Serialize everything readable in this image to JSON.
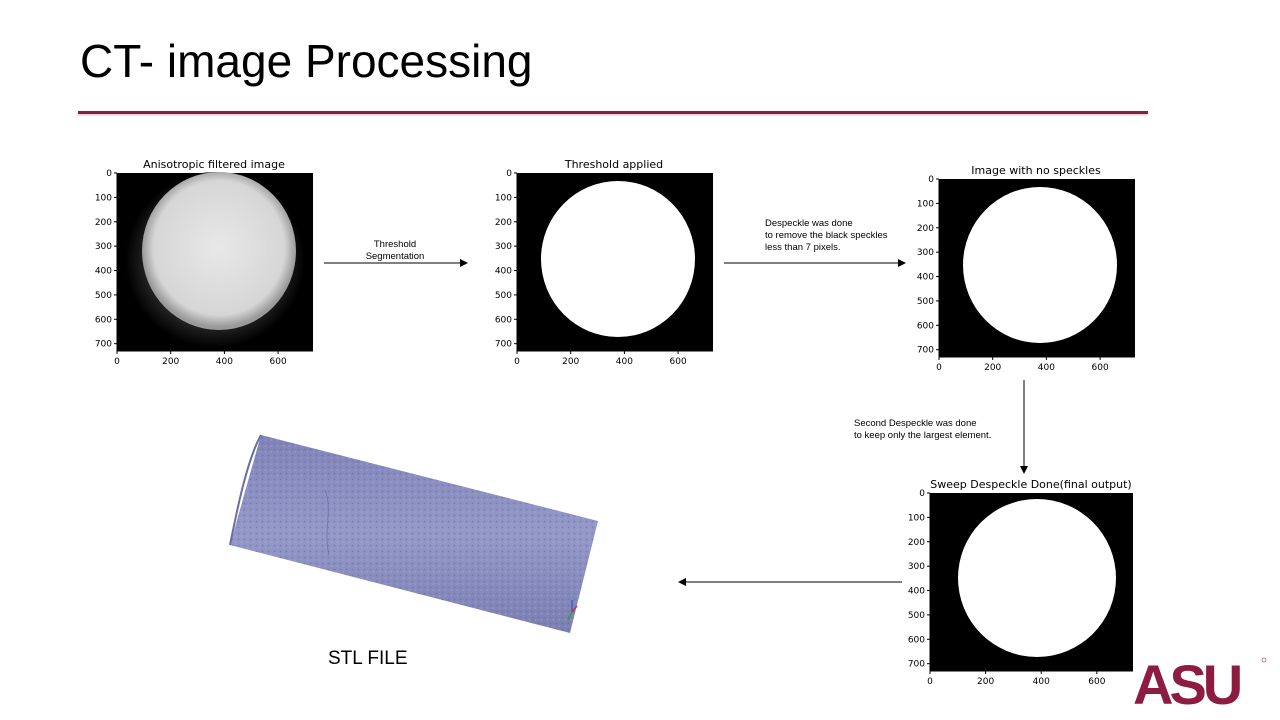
{
  "slide": {
    "title": "CT- image Processing",
    "accent_color": "#8c1d40",
    "logo_text": "ASU",
    "logo_color": "#8c1d40",
    "logo_accent_color": "#ffc627"
  },
  "images": [
    {
      "id": "img1",
      "title": "Anisotropic filtered image",
      "yticks": [
        "0",
        "100",
        "200",
        "300",
        "400",
        "500",
        "600",
        "700"
      ],
      "xticks": [
        "0",
        "200",
        "400",
        "600"
      ],
      "content": "grayscale-disk"
    },
    {
      "id": "img2",
      "title": "Threshold applied",
      "yticks": [
        "0",
        "100",
        "200",
        "300",
        "400",
        "500",
        "600",
        "700"
      ],
      "xticks": [
        "0",
        "200",
        "400",
        "600"
      ],
      "content": "binary-disk"
    },
    {
      "id": "img3",
      "title": "Image with no speckles",
      "yticks": [
        "0",
        "100",
        "200",
        "300",
        "400",
        "500",
        "600",
        "700"
      ],
      "xticks": [
        "0",
        "200",
        "400",
        "600"
      ],
      "content": "binary-disk"
    },
    {
      "id": "img4",
      "title": "Sweep Despeckle Done(final output)",
      "yticks": [
        "0",
        "100",
        "200",
        "300",
        "400",
        "500",
        "600",
        "700"
      ],
      "xticks": [
        "0",
        "200",
        "400",
        "600"
      ],
      "content": "binary-disk"
    }
  ],
  "arrows": {
    "threshold_line1": "Threshold",
    "threshold_line2": "Segmentation",
    "despeckle_line1": "Despeckle was done",
    "despeckle_line2": "to remove the black speckles",
    "despeckle_line3": "less than 7 pixels.",
    "second_line1": "Second Despeckle was done",
    "second_line2": "to keep only the largest element."
  },
  "stl": {
    "label": "STL FILE",
    "model_color": "#8b8fc0"
  }
}
